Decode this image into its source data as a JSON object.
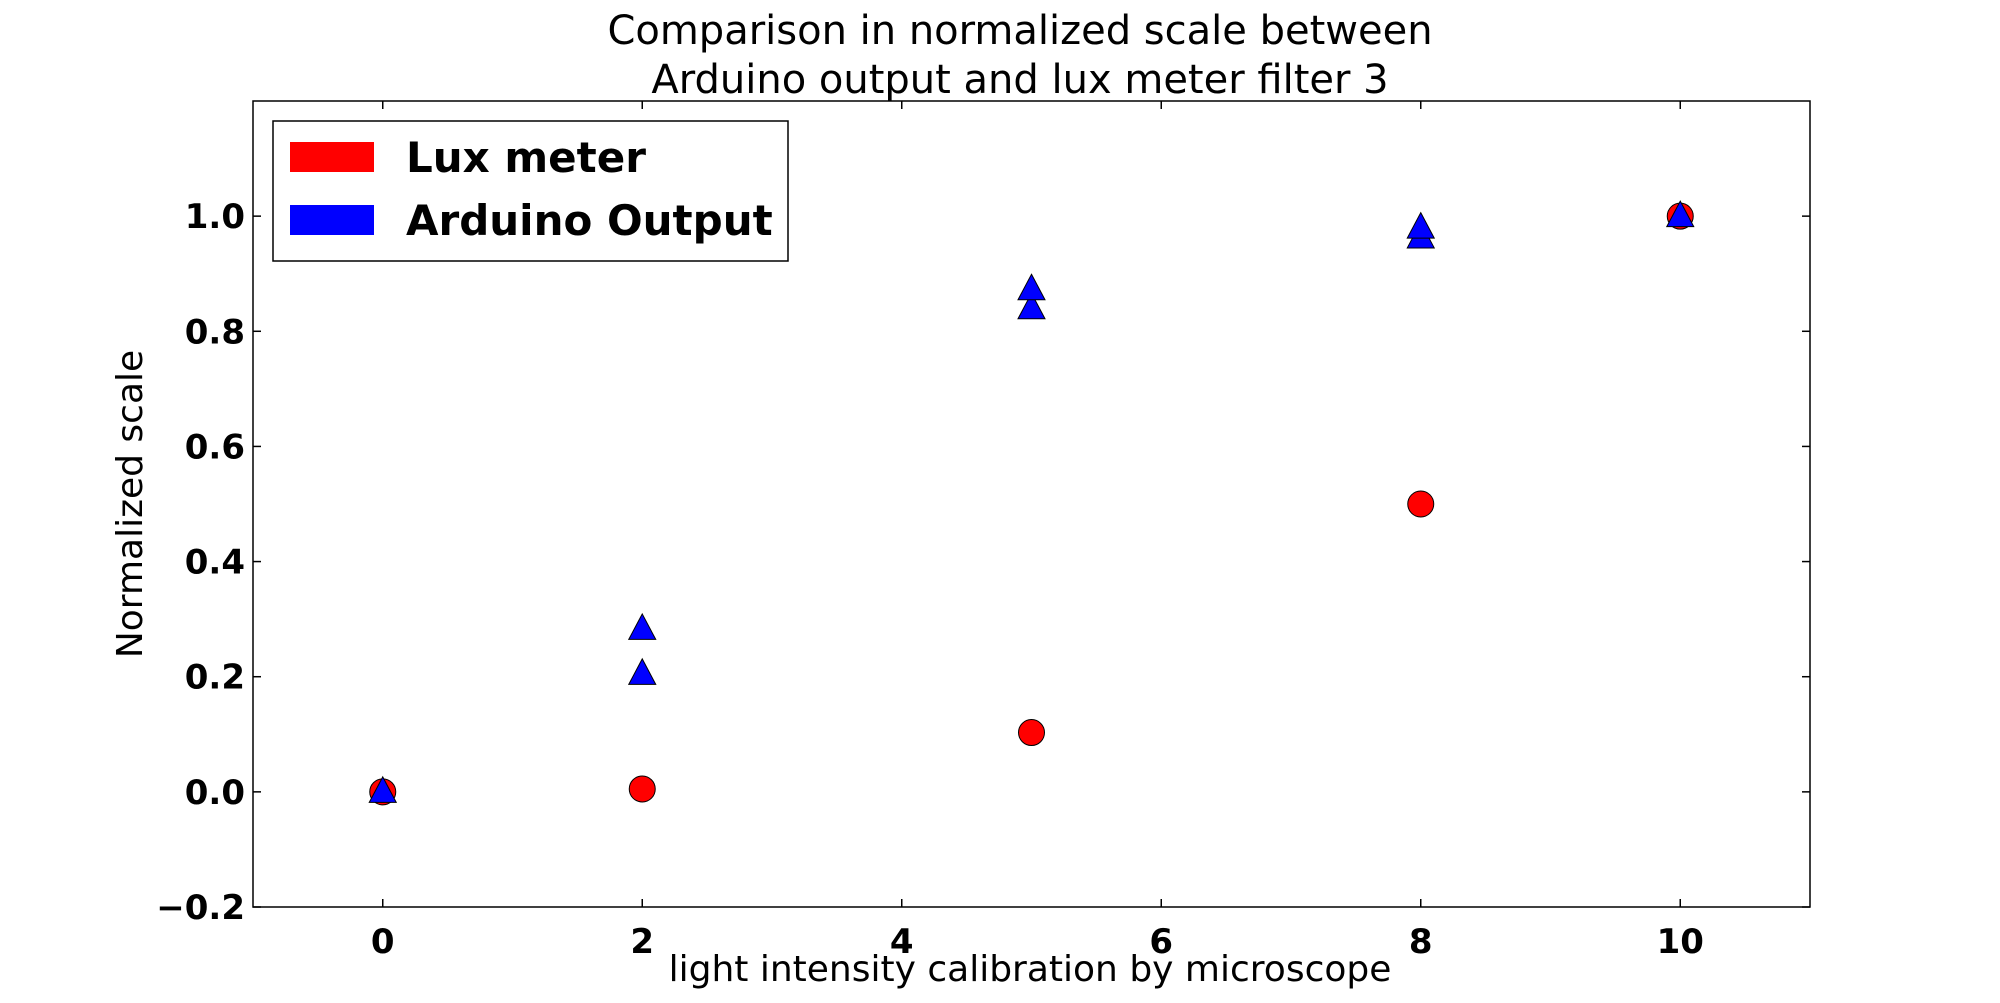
{
  "chart_data": {
    "type": "scatter",
    "title_line1": "Comparison in normalized scale between",
    "title_line2": "Arduino output and lux meter filter 3",
    "xlabel": "light intensity calibration by microscope",
    "ylabel": "Normalized scale",
    "xlim": [
      -1,
      11
    ],
    "ylim": [
      -0.2,
      1.2
    ],
    "xticks": [
      0,
      2,
      4,
      6,
      8,
      10
    ],
    "yticks": [
      -0.2,
      0.0,
      0.2,
      0.4,
      0.6,
      0.8,
      1.0
    ],
    "grid": false,
    "legend_position": "top-left",
    "series": [
      {
        "name": "Lux meter",
        "marker": "circle",
        "color": "#ff0000",
        "points": [
          {
            "x": 0,
            "y": 0.0
          },
          {
            "x": 2,
            "y": 0.005
          },
          {
            "x": 5,
            "y": 0.103
          },
          {
            "x": 8,
            "y": 0.5
          },
          {
            "x": 10,
            "y": 1.0
          }
        ]
      },
      {
        "name": "Arduino Output",
        "marker": "triangle",
        "color": "#0000ff",
        "points": [
          {
            "x": 0,
            "y": 0.0
          },
          {
            "x": 2,
            "y": 0.205
          },
          {
            "x": 2,
            "y": 0.283
          },
          {
            "x": 5,
            "y": 0.84
          },
          {
            "x": 5,
            "y": 0.873
          },
          {
            "x": 8,
            "y": 0.963
          },
          {
            "x": 8,
            "y": 0.98
          },
          {
            "x": 10,
            "y": 1.0
          }
        ]
      }
    ]
  }
}
